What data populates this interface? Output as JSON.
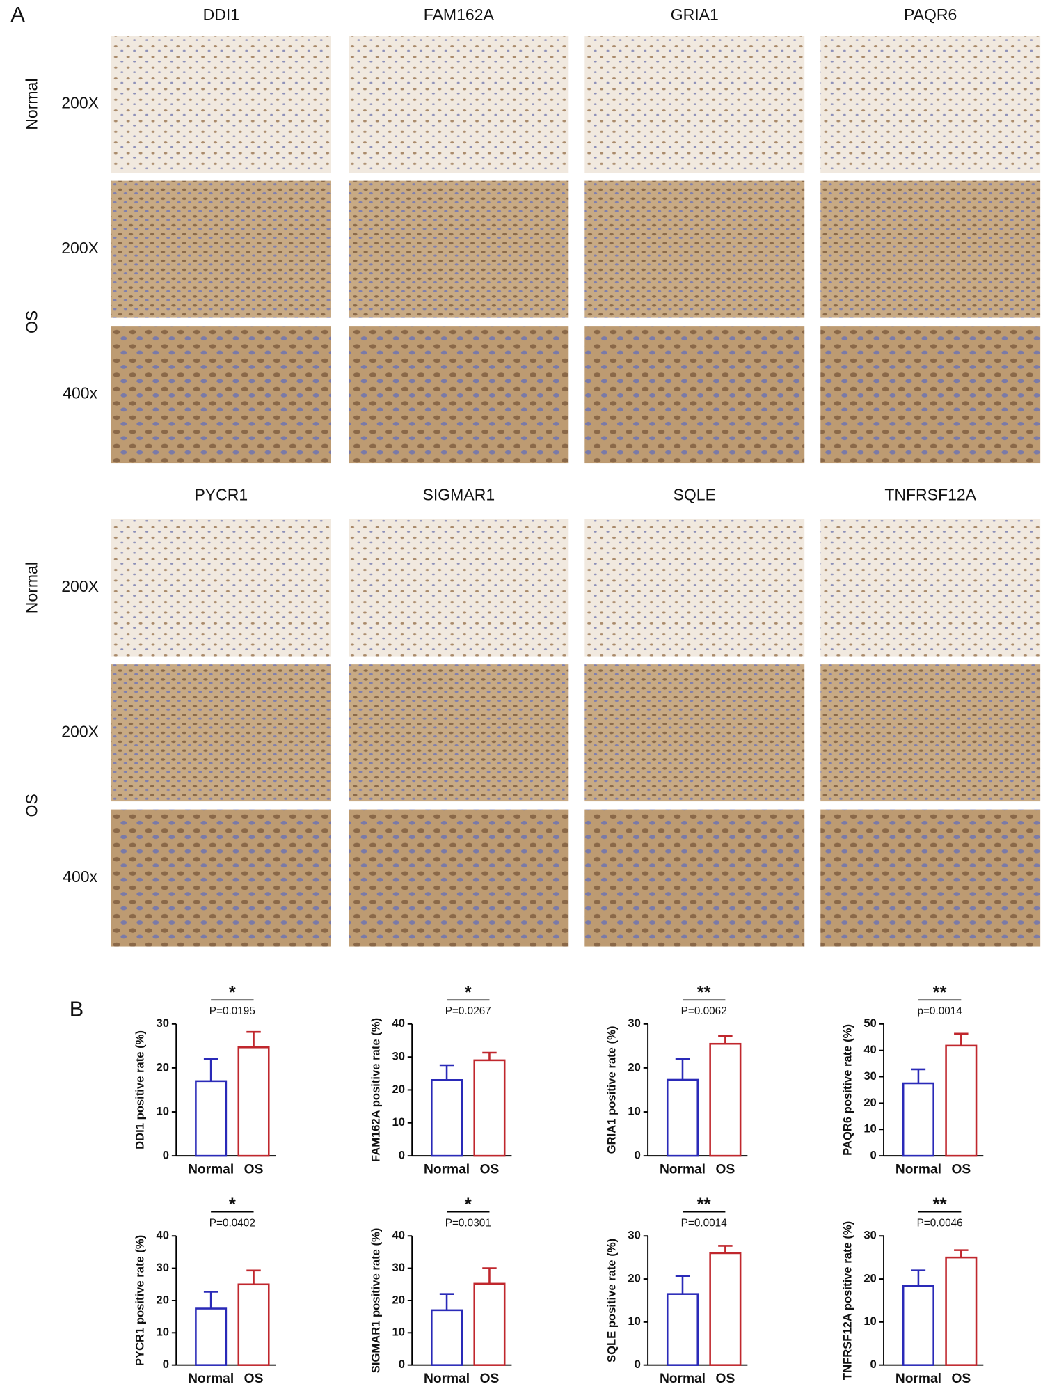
{
  "panel_a": {
    "label": "A",
    "blocks": [
      {
        "genes": [
          "DDI1",
          "FAM162A",
          "GRIA1",
          "PAQR6"
        ],
        "groups": [
          {
            "name": "Normal",
            "magnifications": [
              "200X"
            ]
          },
          {
            "name": "OS",
            "magnifications": [
              "200X",
              "400x"
            ]
          }
        ]
      },
      {
        "genes": [
          "PYCR1",
          "SIGMAR1",
          "SQLE",
          "TNFRSF12A"
        ],
        "groups": [
          {
            "name": "Normal",
            "magnifications": [
              "200X"
            ]
          },
          {
            "name": "OS",
            "magnifications": [
              "200X",
              "400x"
            ]
          }
        ]
      }
    ]
  },
  "panel_b": {
    "label": "B"
  },
  "chart_data": [
    {
      "type": "bar",
      "ylabel": "DDI1 positive rate (%)",
      "categories": [
        "Normal",
        "OS"
      ],
      "values": [
        17,
        24.7
      ],
      "errors": [
        5,
        3.5
      ],
      "colors": [
        "#2a2ab8",
        "#c0272d"
      ],
      "ylim": [
        0,
        30
      ],
      "yticks": [
        0,
        10,
        20,
        30
      ],
      "significance": "*",
      "p_value": "P=0.0195"
    },
    {
      "type": "bar",
      "ylabel": "FAM162A positive rate (%)",
      "categories": [
        "Normal",
        "OS"
      ],
      "values": [
        23,
        29
      ],
      "errors": [
        4.5,
        2.3
      ],
      "colors": [
        "#2a2ab8",
        "#c0272d"
      ],
      "ylim": [
        0,
        40
      ],
      "yticks": [
        0,
        10,
        20,
        30,
        40
      ],
      "significance": "*",
      "p_value": "P=0.0267"
    },
    {
      "type": "bar",
      "ylabel": "GRIA1 positive rate (%)",
      "categories": [
        "Normal",
        "OS"
      ],
      "values": [
        17.3,
        25.5
      ],
      "errors": [
        4.7,
        1.8
      ],
      "colors": [
        "#2a2ab8",
        "#c0272d"
      ],
      "ylim": [
        0,
        30
      ],
      "yticks": [
        0,
        10,
        20,
        30
      ],
      "significance": "**",
      "p_value": "P=0.0062"
    },
    {
      "type": "bar",
      "ylabel": "PAQR6 positive rate (%)",
      "categories": [
        "Normal",
        "OS"
      ],
      "values": [
        27.5,
        41.8
      ],
      "errors": [
        5.3,
        4.5
      ],
      "colors": [
        "#2a2ab8",
        "#c0272d"
      ],
      "ylim": [
        0,
        50
      ],
      "yticks": [
        0,
        10,
        20,
        30,
        40,
        50
      ],
      "significance": "**",
      "p_value": "p=0.0014"
    },
    {
      "type": "bar",
      "ylabel": "PYCR1 positive rate (%)",
      "categories": [
        "Normal",
        "OS"
      ],
      "values": [
        17.5,
        25
      ],
      "errors": [
        5.2,
        4.3
      ],
      "colors": [
        "#2a2ab8",
        "#c0272d"
      ],
      "ylim": [
        0,
        40
      ],
      "yticks": [
        0,
        10,
        20,
        30,
        40
      ],
      "significance": "*",
      "p_value": "P=0.0402"
    },
    {
      "type": "bar",
      "ylabel": "SIGMAR1 positive rate (%)",
      "categories": [
        "Normal",
        "OS"
      ],
      "values": [
        17,
        25.2
      ],
      "errors": [
        5,
        4.8
      ],
      "colors": [
        "#2a2ab8",
        "#c0272d"
      ],
      "ylim": [
        0,
        40
      ],
      "yticks": [
        0,
        10,
        20,
        30,
        40
      ],
      "significance": "*",
      "p_value": "P=0.0301"
    },
    {
      "type": "bar",
      "ylabel": "SQLE positive rate (%)",
      "categories": [
        "Normal",
        "OS"
      ],
      "values": [
        16.5,
        26
      ],
      "errors": [
        4.2,
        1.7
      ],
      "colors": [
        "#2a2ab8",
        "#c0272d"
      ],
      "ylim": [
        0,
        30
      ],
      "yticks": [
        0,
        10,
        20,
        30
      ],
      "significance": "**",
      "p_value": "P=0.0014"
    },
    {
      "type": "bar",
      "ylabel": "TNFRSF12A positive rate (%)",
      "categories": [
        "Normal",
        "OS"
      ],
      "values": [
        18.4,
        25
      ],
      "errors": [
        3.6,
        1.7
      ],
      "colors": [
        "#2a2ab8",
        "#c0272d"
      ],
      "ylim": [
        0,
        30
      ],
      "yticks": [
        0,
        10,
        20,
        30
      ],
      "significance": "**",
      "p_value": "P=0.0046"
    }
  ]
}
